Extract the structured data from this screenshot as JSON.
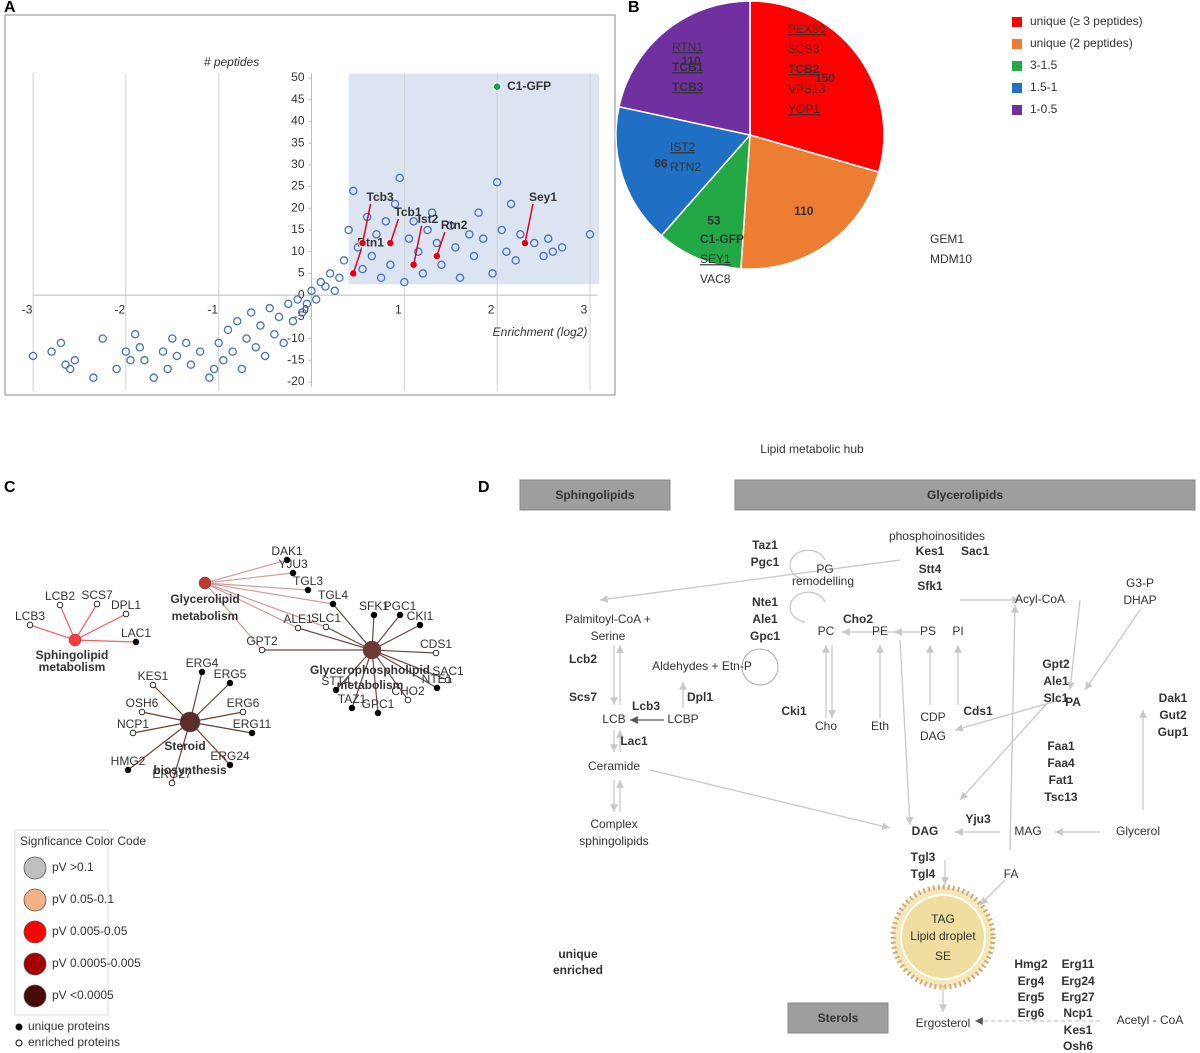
{
  "panel_labels": [
    "A",
    "B",
    "C",
    "D"
  ],
  "chart_data": [
    {
      "type": "scatter",
      "ylabel": "# peptides",
      "xlabel": "Enrichment (log2)",
      "xlim": [
        -3.27,
        3.19
      ],
      "ylim": [
        -22,
        52
      ],
      "xticks": [
        -3,
        -2,
        -1,
        0,
        1,
        2,
        3
      ],
      "yticks": [
        -20,
        -15,
        -10,
        -5,
        0,
        5,
        10,
        15,
        20,
        25,
        30,
        35,
        40,
        45,
        50
      ],
      "grid": true,
      "highlight_region": {
        "x": [
          0.4,
          3.1
        ],
        "y": [
          2.5,
          51
        ],
        "color": "#dce4f2"
      },
      "x": [
        -3,
        -2.8,
        -2.65,
        -2.6,
        -2.7,
        -2.55,
        -2.35,
        -2.25,
        -2.1,
        -2,
        -1.95,
        -1.9,
        -1.85,
        -1.8,
        -1.7,
        -1.6,
        -1.55,
        -1.5,
        -1.45,
        -1.35,
        -1.3,
        -1.2,
        -1.1,
        -1.05,
        -1,
        -0.95,
        -0.9,
        -0.85,
        -0.8,
        -0.75,
        -0.7,
        -0.65,
        -0.6,
        -0.55,
        -0.5,
        -0.45,
        -0.4,
        -0.35,
        -0.3,
        -0.25,
        -0.2,
        -0.15,
        -0.1,
        -0.05,
        0,
        0.05,
        0.1,
        0.15,
        0.2,
        0.25,
        0.3,
        0.35,
        0.4,
        0.45,
        0.5,
        0.55,
        0.6,
        0.65,
        0.7,
        0.75,
        0.8,
        0.85,
        0.9,
        0.95,
        1,
        1.05,
        1.1,
        1.15,
        1.2,
        1.25,
        1.3,
        1.35,
        1.4,
        1.5,
        1.55,
        1.6,
        1.7,
        1.75,
        1.8,
        1.85,
        1.95,
        2,
        2.05,
        2.1,
        2.15,
        2.2,
        2.25,
        2.4,
        2.5,
        2.55,
        2.6,
        2.7,
        3
      ],
      "series": [
        {
          "color": "#4472c4",
          "values": [
            -14,
            -13,
            -16,
            -17,
            -11,
            -15,
            -19,
            -10,
            -17,
            -13,
            -15,
            -9,
            -12,
            -15,
            -19,
            -13,
            -17,
            -10,
            -14,
            -11,
            -16,
            -13,
            -19,
            -17,
            -11,
            -15,
            -8,
            -13,
            -6,
            -17,
            -10,
            -4,
            -12,
            -7,
            -14,
            -3,
            -9,
            -5,
            -11,
            -2,
            -6,
            -1,
            -4,
            -2,
            1,
            -1,
            3,
            2,
            5,
            1,
            4,
            8,
            15,
            24,
            11,
            6,
            18,
            9,
            14,
            4,
            17,
            7,
            21,
            27,
            3,
            13,
            17,
            10,
            5,
            15,
            19,
            12,
            7,
            16,
            11,
            4,
            14,
            9,
            19,
            13,
            5,
            26,
            15,
            10,
            21,
            8,
            14,
            12,
            9,
            13,
            10,
            11,
            14
          ]
        }
      ],
      "highlights": [
        {
          "label": "C1-GFP",
          "x": 2.0,
          "y": 48,
          "color": "#1a9a5c"
        },
        {
          "label": "Rtn1",
          "x": 0.45,
          "y": 5,
          "color": "#e3001b"
        },
        {
          "label": "Tcb3",
          "x": 0.55,
          "y": 12,
          "color": "#e3001b"
        },
        {
          "label": "Tcb1",
          "x": 0.85,
          "y": 12,
          "color": "#e3001b"
        },
        {
          "label": "Ist2",
          "x": 1.1,
          "y": 7,
          "color": "#e3001b"
        },
        {
          "label": "Rtn2",
          "x": 1.35,
          "y": 9,
          "color": "#e3001b"
        },
        {
          "label": "Sey1",
          "x": 2.3,
          "y": 12,
          "color": "#e3001b"
        }
      ]
    },
    {
      "type": "pie",
      "categories": [
        "unique (≥ 3 peptides)",
        "unique (2 peptides)",
        "3-1.5",
        "1.5-1",
        "1-0.5"
      ],
      "values": [
        150,
        110,
        53,
        86,
        110
      ],
      "colors": [
        "#ff0000",
        "#ed7d31",
        "#22a845",
        "#1f6fc5",
        "#7030a0"
      ],
      "gene_labels": [
        [
          {
            "text": "PEX30",
            "underline": true,
            "bold": false
          },
          {
            "text": "SCS3",
            "underline": false,
            "bold": false
          },
          {
            "text": "TCB2",
            "underline": true,
            "bold": true
          },
          {
            "text": "VPS13",
            "underline": false,
            "bold": false
          },
          {
            "text": "YOP1",
            "underline": true,
            "bold": false
          }
        ],
        [
          {
            "text": "GEM1",
            "underline": false,
            "bold": false
          },
          {
            "text": "MDM10",
            "underline": false,
            "bold": false
          }
        ],
        [
          {
            "text": "C1-GFP",
            "underline": false,
            "bold": true
          },
          {
            "text": "SEY1",
            "underline": true,
            "bold": false
          },
          {
            "text": "VAC8",
            "underline": false,
            "bold": false
          }
        ],
        [
          {
            "text": "IST2",
            "underline": true,
            "bold": false
          },
          {
            "text": "RTN2",
            "underline": false,
            "bold": false
          }
        ],
        [
          {
            "text": "RTN1",
            "underline": true,
            "bold": false
          },
          {
            "text": "TCB1",
            "underline": true,
            "bold": true
          },
          {
            "text": "TCB3",
            "underline": true,
            "bold": true
          }
        ]
      ]
    }
  ],
  "network": {
    "hubs": [
      {
        "lines": [
          "Glycerolipid",
          "metabolism"
        ],
        "color": "#c0392b",
        "text_color": "#9b1c1c"
      },
      {
        "lines": [
          "Sphingolipid",
          "metabolism"
        ],
        "color": "#ff3b3b",
        "text_color": "#e32222"
      },
      {
        "lines": [
          "Glycerophospholipid",
          "metabolism"
        ],
        "color": "#6b3a36",
        "text_color": "#222"
      },
      {
        "lines": [
          "Steroid",
          "biosynthesis"
        ],
        "color": "#5a2e2a",
        "text_color": "#3a1a18"
      }
    ],
    "leaves": [
      {
        "label": "LCB3",
        "unique": false
      },
      {
        "label": "LCB2",
        "unique": false
      },
      {
        "label": "SCS7",
        "unique": false
      },
      {
        "label": "DPL1",
        "unique": false
      },
      {
        "label": "LAC1",
        "unique": true
      },
      {
        "label": "DAK1",
        "unique": true
      },
      {
        "label": "YJU3",
        "unique": true
      },
      {
        "label": "TGL3",
        "unique": true
      },
      {
        "label": "TGL4",
        "unique": true
      },
      {
        "label": "SLC1",
        "unique": false
      },
      {
        "label": "ALE1",
        "unique": false
      },
      {
        "label": "GPT2",
        "unique": false
      },
      {
        "label": "SFK1",
        "unique": true
      },
      {
        "label": "PGC1",
        "unique": true
      },
      {
        "label": "CKI1",
        "unique": true
      },
      {
        "label": "CDS1",
        "unique": false
      },
      {
        "label": "SAC1",
        "unique": false
      },
      {
        "label": "NTE1",
        "unique": true
      },
      {
        "label": "CHO2",
        "unique": false
      },
      {
        "label": "GPC1",
        "unique": true
      },
      {
        "label": "TAZ1",
        "unique": true
      },
      {
        "label": "STT4",
        "unique": true
      },
      {
        "label": "ERG4",
        "unique": true
      },
      {
        "label": "ERG5",
        "unique": true
      },
      {
        "label": "ERG6",
        "unique": false
      },
      {
        "label": "ERG11",
        "unique": true
      },
      {
        "label": "ERG24",
        "unique": true
      },
      {
        "label": "ERG27",
        "unique": false
      },
      {
        "label": "HMG2",
        "unique": true
      },
      {
        "label": "NCP1",
        "unique": false
      },
      {
        "label": "OSH6",
        "unique": false
      },
      {
        "label": "KES1",
        "unique": false
      }
    ],
    "legend_title": "Signficance Color Code",
    "levels": [
      {
        "label": "pV >0.1",
        "color": "#bfbfbf"
      },
      {
        "label": "pV 0.05-0.1",
        "color": "#f4b183"
      },
      {
        "label": "pV 0.005-0.05",
        "color": "#ff0000"
      },
      {
        "label": "pV 0.0005-0.005",
        "color": "#a50000"
      },
      {
        "label": "pV <0.0005",
        "color": "#4a0a0a"
      }
    ],
    "node_types": [
      "unique proteins",
      "enriched proteins"
    ]
  },
  "diagram": {
    "title": "Lipid metabolic hub",
    "boxes": [
      "Sphingolipids",
      "Glycerolipids",
      "Sterols"
    ],
    "labels": [
      {
        "text": "Taz1",
        "color": "#e3001b"
      },
      {
        "text": "Pgc1",
        "color": "#e3001b"
      },
      {
        "text": "PG",
        "color": "#9a9a9a"
      },
      {
        "text": "remodelling",
        "color": "#9a9a9a"
      },
      {
        "text": "phosphoinositides",
        "color": "#777"
      },
      {
        "text": "Kes1",
        "color": "#1f6fe0"
      },
      {
        "text": "Sac1",
        "color": "#1f6fe0"
      },
      {
        "text": "Stt4",
        "color": "#e3001b"
      },
      {
        "text": "Sfk1",
        "color": "#e3001b"
      },
      {
        "text": "Acyl-CoA",
        "color": "#000"
      },
      {
        "text": "G3-P",
        "color": "#9a9a9a"
      },
      {
        "text": "DHAP",
        "color": "#9a9a9a"
      },
      {
        "text": "Palmitoyl-CoA +",
        "color": "#9a9a9a"
      },
      {
        "text": "Serine",
        "color": "#9a9a9a"
      },
      {
        "text": "Nte1",
        "color": "#e3001b"
      },
      {
        "text": "Ale1",
        "color": "#e3001b"
      },
      {
        "text": "Gpc1",
        "color": "#e3001b"
      },
      {
        "text": "Cho2",
        "color": "#1f6fe0"
      },
      {
        "text": "PC",
        "color": "#9a9a9a"
      },
      {
        "text": "PE",
        "color": "#9a9a9a"
      },
      {
        "text": "PS",
        "color": "#9a9a9a"
      },
      {
        "text": "PI",
        "color": "#9a9a9a"
      },
      {
        "text": "Lcb2",
        "color": "#1f6fe0"
      },
      {
        "text": "Aldehydes + Etn-P",
        "color": "#9a9a9a"
      },
      {
        "text": "Gpt2",
        "color": "#1f6fe0"
      },
      {
        "text": "Ale1",
        "color": "#e3001b"
      },
      {
        "text": "Slc1",
        "color": "#1f6fe0"
      },
      {
        "text": "Dpl1",
        "color": "#1f6fe0"
      },
      {
        "text": "Scs7",
        "color": "#e3001b"
      },
      {
        "text": "Lcb3",
        "color": "#e3001b"
      },
      {
        "text": "LCB",
        "color": "#000"
      },
      {
        "text": "LCBP",
        "color": "#000"
      },
      {
        "text": "Lac1",
        "color": "#e3001b"
      },
      {
        "text": "Cki1",
        "color": "#e3001b"
      },
      {
        "text": "Cds1",
        "color": "#1f6fe0"
      },
      {
        "text": "CDP",
        "color": "#9a9a9a"
      },
      {
        "text": "DAG",
        "color": "#9a9a9a"
      },
      {
        "text": "Cho",
        "color": "#9a9a9a"
      },
      {
        "text": "Eth",
        "color": "#9a9a9a"
      },
      {
        "text": "PA",
        "color": "#9a9a9a"
      },
      {
        "text": "Dak1",
        "color": "#1f6fe0"
      },
      {
        "text": "Gut2",
        "color": "#1f6fe0"
      },
      {
        "text": "Gup1",
        "color": "#1f6fe0"
      },
      {
        "text": "Ceramide",
        "color": "#9a9a9a"
      },
      {
        "text": "Faa1",
        "color": "#e3001b"
      },
      {
        "text": "Faa4",
        "color": "#1f6fe0"
      },
      {
        "text": "Fat1",
        "color": "#1f6fe0"
      },
      {
        "text": "Tsc13",
        "color": "#e3001b"
      },
      {
        "text": "Complex",
        "color": "#9a9a9a"
      },
      {
        "text": "sphingolipids",
        "color": "#9a9a9a"
      },
      {
        "text": "Yju3",
        "color": "#e3001b"
      },
      {
        "text": "DAG",
        "color": "#000"
      },
      {
        "text": "MAG",
        "color": "#9a9a9a"
      },
      {
        "text": "Glycerol",
        "color": "#9a9a9a"
      },
      {
        "text": "Tgl3",
        "color": "#e3001b"
      },
      {
        "text": "Tgl4",
        "color": "#e3001b"
      },
      {
        "text": "FA",
        "color": "#9a9a9a"
      },
      {
        "text": "TAG",
        "color": "#888"
      },
      {
        "text": "Lipid droplet",
        "color": "#aaa"
      },
      {
        "text": "SE",
        "color": "#888"
      },
      {
        "text": "unique",
        "color": "#e3001b"
      },
      {
        "text": "enriched",
        "color": "#1f6fe0"
      },
      {
        "text": "Hmg2",
        "color": "#e3001b"
      },
      {
        "text": "Erg4",
        "color": "#e3001b"
      },
      {
        "text": "Erg5",
        "color": "#e3001b"
      },
      {
        "text": "Erg6",
        "color": "#1f6fe0"
      },
      {
        "text": "Erg11",
        "color": "#e3001b"
      },
      {
        "text": "Erg24",
        "color": "#e3001b"
      },
      {
        "text": "Erg27",
        "color": "#1f6fe0"
      },
      {
        "text": "Ncp1",
        "color": "#1f6fe0"
      },
      {
        "text": "Kes1",
        "color": "#1f6fe0"
      },
      {
        "text": "Osh6",
        "color": "#1f6fe0"
      },
      {
        "text": "Ergosterol",
        "color": "#9a9a9a"
      },
      {
        "text": "Acetyl - CoA",
        "color": "#9a9a9a"
      }
    ]
  }
}
